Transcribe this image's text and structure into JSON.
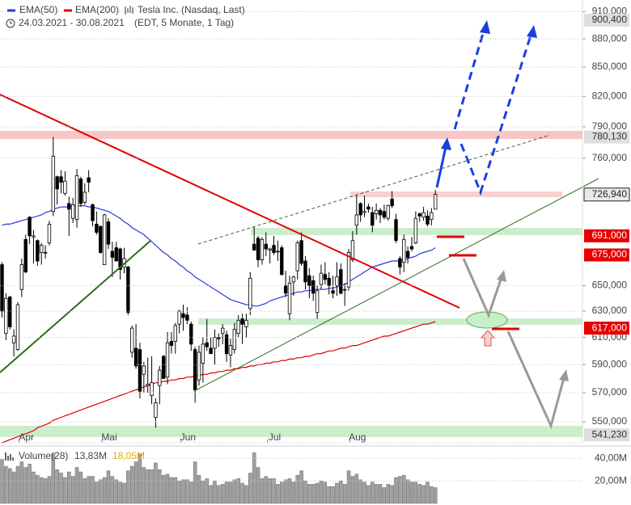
{
  "chart_data": {
    "type": "candlestick",
    "instrument": "Tesla Inc. (Nasdaq, Last)",
    "date_range": "24.03.2021 - 30.08.2021",
    "period": "(EDT, 5 Monate, 1 Tag)",
    "categories": [
      null,
      null,
      null,
      null,
      null,
      null,
      "Apr",
      null,
      null,
      null,
      null,
      null,
      null,
      null,
      null,
      null,
      null,
      null,
      null,
      null,
      null,
      null,
      null,
      null,
      null,
      null,
      null,
      "Mai",
      null,
      null,
      null,
      null,
      null,
      null,
      null,
      null,
      null,
      null,
      null,
      null,
      null,
      null,
      null,
      null,
      null,
      null,
      null,
      "Jun",
      null,
      null,
      null,
      null,
      null,
      null,
      null,
      null,
      null,
      null,
      null,
      null,
      null,
      null,
      null,
      null,
      null,
      null,
      null,
      null,
      null,
      "Jul",
      null,
      null,
      null,
      null,
      null,
      null,
      null,
      null,
      null,
      null,
      null,
      null,
      null,
      null,
      null,
      null,
      null,
      null,
      null,
      null,
      "Aug",
      null,
      null,
      null,
      null,
      null,
      null,
      null,
      null,
      null,
      null,
      null,
      null,
      null,
      null,
      null,
      null,
      null,
      null,
      null,
      null
    ],
    "open": [
      667,
      613,
      641,
      606,
      601,
      647,
      688,
      707,
      690,
      687,
      677,
      677,
      685,
      712,
      743,
      743,
      728,
      719,
      706,
      705,
      741,
      720,
      742,
      718,
      701,
      699,
      667,
      703,
      678,
      681,
      680,
      665,
      665,
      599,
      602,
      601,
      583,
      575,
      568,
      553,
      575,
      596,
      581,
      607,
      607,
      620,
      628,
      627,
      620,
      601,
      579,
      591,
      606,
      602,
      602,
      610,
      613,
      612,
      597,
      601,
      613,
      624,
      618,
      632,
      684,
      689,
      671,
      684,
      679,
      683,
      678,
      681,
      650,
      628,
      653,
      662,
      687,
      670,
      658,
      654,
      629,
      651,
      659,
      656,
      646,
      650,
      663,
      647,
      649,
      671,
      700,
      719,
      711,
      716,
      711,
      710,
      713,
      712,
      706,
      723,
      705,
      672,
      669,
      678,
      682,
      685,
      710,
      707,
      708,
      705,
      714
    ],
    "high": [
      669,
      644,
      642,
      616,
      637,
      672,
      692,
      708,
      696,
      688,
      685,
      683,
      704,
      780,
      744,
      749,
      748,
      725,
      724,
      750,
      743,
      737,
      749,
      719,
      712,
      700,
      710,
      706,
      686,
      686,
      681,
      681,
      666,
      619,
      620,
      606,
      592,
      595,
      596,
      566,
      589,
      597,
      614,
      614,
      621,
      631,
      635,
      633,
      622,
      603,
      604,
      610,
      624,
      610,
      616,
      613,
      620,
      615,
      609,
      621,
      627,
      628,
      628,
      661,
      699,
      691,
      690,
      694,
      681,
      691,
      687,
      683,
      662,
      658,
      658,
      687,
      694,
      674,
      664,
      658,
      650,
      667,
      669,
      661,
      658,
      669,
      668,
      652,
      680,
      695,
      727,
      720,
      726,
      719,
      716,
      719,
      715,
      718,
      718,
      730,
      710,
      674,
      692,
      682,
      690,
      712,
      711,
      716,
      713,
      715,
      731
    ],
    "low": [
      625,
      608,
      616,
      596,
      600,
      641,
      660,
      684,
      668,
      666,
      667,
      672,
      683,
      708,
      718,
      728,
      726,
      691,
      702,
      698,
      716,
      718,
      729,
      699,
      692,
      676,
      667,
      680,
      657,
      670,
      655,
      660,
      627,
      595,
      587,
      566,
      570,
      570,
      562,
      546,
      562,
      580,
      576,
      598,
      598,
      613,
      615,
      620,
      600,
      563,
      575,
      577,
      600,
      598,
      590,
      603,
      605,
      592,
      588,
      598,
      610,
      605,
      610,
      627,
      679,
      665,
      667,
      674,
      668,
      675,
      670,
      658,
      641,
      623,
      642,
      655,
      666,
      647,
      640,
      638,
      624,
      647,
      651,
      643,
      640,
      642,
      643,
      634,
      646,
      669,
      692,
      703,
      707,
      711,
      694,
      705,
      702,
      705,
      704,
      715,
      685,
      659,
      661,
      668,
      678,
      684,
      703,
      704,
      699,
      700,
      714
    ],
    "close": [
      630,
      640,
      618,
      611,
      635,
      667,
      661,
      691,
      691,
      670,
      683,
      677,
      701,
      762,
      732,
      738,
      739,
      714,
      718,
      744,
      719,
      729,
      738,
      704,
      694,
      677,
      709,
      684,
      673,
      670,
      663,
      672,
      629,
      617,
      589,
      571,
      589,
      576,
      577,
      563,
      586,
      580,
      606,
      604,
      619,
      630,
      625,
      623,
      605,
      572,
      599,
      605,
      603,
      598,
      610,
      609,
      617,
      598,
      604,
      616,
      623,
      620,
      623,
      656,
      679,
      671,
      688,
      680,
      680,
      677,
      678,
      659,
      644,
      652,
      657,
      685,
      668,
      653,
      650,
      644,
      646,
      660,
      655,
      650,
      644,
      657,
      644,
      647,
      677,
      687,
      709,
      709,
      712,
      714,
      700,
      713,
      709,
      707,
      717,
      717,
      687,
      665,
      688,
      673,
      680,
      706,
      708,
      711,
      701,
      711,
      727
    ],
    "up_color": "#ffffff",
    "down_color": "#000000",
    "series": [
      {
        "name": "EMA(50)",
        "color": "#2a3bd6",
        "values": [
          700,
          701,
          701,
          702,
          703,
          704,
          705,
          706,
          707,
          708,
          709,
          711,
          712,
          714,
          715,
          716,
          716,
          716,
          717,
          717,
          717,
          717,
          716,
          716,
          715,
          714,
          713,
          712,
          710,
          708,
          706,
          703,
          701,
          698,
          696,
          694,
          692,
          689,
          686,
          683,
          680,
          677,
          675,
          672,
          670,
          667,
          665,
          662,
          660,
          657,
          655,
          653,
          651,
          649,
          647,
          645,
          643,
          641,
          639,
          638,
          637,
          636,
          635,
          635,
          634,
          634,
          635,
          636,
          638,
          639,
          640,
          641,
          642,
          643,
          644,
          645,
          645,
          646,
          646,
          647,
          647,
          647,
          647,
          648,
          648,
          649,
          650,
          651,
          653,
          655,
          657,
          659,
          661,
          663,
          665,
          666,
          667,
          668,
          669,
          670,
          670,
          670,
          671,
          672,
          673,
          674,
          676,
          677,
          678,
          679,
          681
        ]
      },
      {
        "name": "EMA(200)",
        "color": "#e00000",
        "values": [
          536,
          537,
          538,
          539,
          540,
          541,
          542,
          543,
          544,
          546,
          547,
          548,
          549,
          551,
          552,
          553,
          554,
          555,
          556,
          557,
          558,
          559,
          560,
          561,
          562,
          563,
          564,
          565,
          566,
          567,
          568,
          569,
          570,
          571,
          572,
          573,
          574,
          575,
          576,
          577,
          577,
          578,
          578,
          579,
          579,
          580,
          580,
          581,
          581,
          582,
          582,
          583,
          583,
          584,
          584,
          585,
          585,
          586,
          586,
          587,
          587,
          588,
          588,
          589,
          589,
          590,
          590,
          591,
          591,
          592,
          592,
          593,
          593,
          594,
          594,
          595,
          595,
          596,
          596,
          597,
          598,
          598,
          599,
          600,
          600,
          601,
          602,
          602,
          603,
          604,
          604,
          605,
          606,
          607,
          608,
          609,
          610,
          611,
          611,
          612,
          613,
          614,
          615,
          616,
          617,
          618,
          619,
          620,
          620,
          621,
          622
        ]
      }
    ],
    "ylim": [
      536,
      923
    ],
    "log_scale": true,
    "grid": true,
    "yticks": [
      {
        "value": 910,
        "label": "910,000"
      },
      {
        "value": 880,
        "label": "880,000"
      },
      {
        "value": 850,
        "label": "850,000"
      },
      {
        "value": 820,
        "label": "820,000"
      },
      {
        "value": 790,
        "label": "790,000"
      },
      {
        "value": 760,
        "label": "760,000"
      },
      {
        "value": 650,
        "label": "650,000"
      },
      {
        "value": 630,
        "label": "630,000"
      },
      {
        "value": 610,
        "label": "610,000"
      },
      {
        "value": 590,
        "label": "590,000"
      },
      {
        "value": 570,
        "label": "570,000"
      },
      {
        "value": 550,
        "label": "550,000"
      }
    ],
    "price_levels": [
      {
        "value": 900.4,
        "label": "900,400",
        "color": "#dedede",
        "text_color": "#333333"
      },
      {
        "value": 780.13,
        "label": "780,130",
        "color": "#dedede",
        "text_color": "#333333"
      },
      {
        "value": 726.94,
        "label": "726,940",
        "color": "#e8e8e8",
        "text_color": "#222222"
      },
      {
        "value": 691,
        "label": "691,000",
        "color": "#e60000",
        "text_color": "#ffffff"
      },
      {
        "value": 675,
        "label": "675,000",
        "color": "#e60000",
        "text_color": "#ffffff"
      },
      {
        "value": 617,
        "label": "617,000",
        "color": "#e60000",
        "text_color": "#ffffff"
      },
      {
        "value": 541.23,
        "label": "541,230",
        "color": "#dedede",
        "text_color": "#333333"
      }
    ],
    "volume": {
      "label": "Volume(28)",
      "last": "13,83M",
      "average": "18,05M",
      "color": "#a0a0a0",
      "values": [
        39,
        33,
        31,
        28,
        33,
        37,
        32,
        35,
        28,
        25,
        23,
        22,
        24,
        44,
        30,
        27,
        23,
        28,
        24,
        32,
        28,
        22,
        24,
        24,
        19,
        21,
        23,
        29,
        24,
        21,
        19,
        18,
        29,
        33,
        37,
        44,
        32,
        30,
        30,
        36,
        30,
        25,
        26,
        23,
        23,
        20,
        21,
        21,
        19,
        37,
        25,
        20,
        22,
        16,
        20,
        16,
        17,
        19,
        19,
        21,
        22,
        18,
        16,
        27,
        45,
        32,
        22,
        24,
        22,
        22,
        17,
        19,
        21,
        22,
        19,
        25,
        29,
        20,
        17,
        17,
        18,
        20,
        19,
        15,
        15,
        18,
        20,
        17,
        29,
        24,
        26,
        21,
        19,
        16,
        19,
        17,
        17,
        14,
        17,
        16,
        23,
        24,
        25,
        21,
        19,
        19,
        17,
        16,
        19,
        15,
        14
      ],
      "ylim": [
        0,
        46
      ],
      "yticks": [
        {
          "value": 40,
          "label": "40,00M"
        },
        {
          "value": 20,
          "label": "20,00M"
        }
      ]
    }
  }
}
